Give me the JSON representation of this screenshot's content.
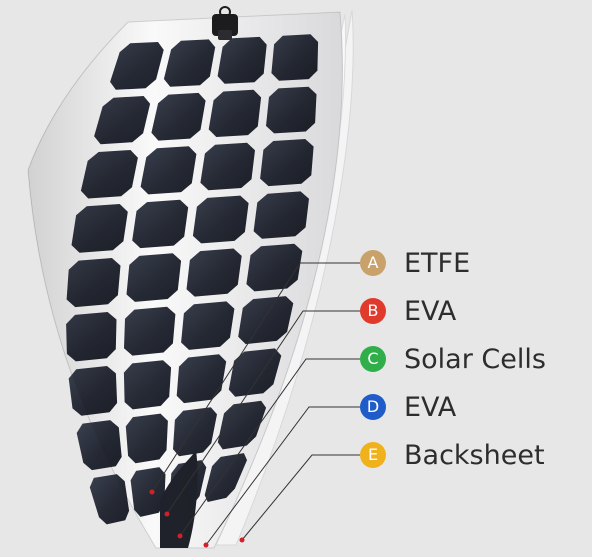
{
  "layers": [
    {
      "letter": "A",
      "name": "ETFE",
      "color": "#c9a26b"
    },
    {
      "letter": "B",
      "name": "EVA",
      "color": "#e03a2c"
    },
    {
      "letter": "C",
      "name": "Solar Cells",
      "color": "#2fae4a"
    },
    {
      "letter": "D",
      "name": "EVA",
      "color": "#1f5cc9"
    },
    {
      "letter": "E",
      "name": "Backsheet",
      "color": "#f0b21c"
    }
  ],
  "colors": {
    "background": "#e7e7e8",
    "cell": "#2a2f3c",
    "leader_line": "#333333",
    "marker": "#d0202a"
  },
  "icons": [
    "junction-box-icon",
    "solar-panel-illustration"
  ]
}
